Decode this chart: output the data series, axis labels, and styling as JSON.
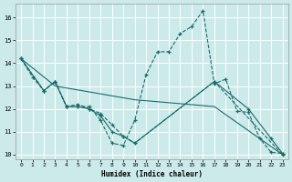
{
  "xlabel": "Humidex (Indice chaleur)",
  "xlim": [
    -0.5,
    23.5
  ],
  "ylim": [
    9.8,
    16.6
  ],
  "yticks": [
    10,
    11,
    12,
    13,
    14,
    15,
    16
  ],
  "xticks": [
    0,
    1,
    2,
    3,
    4,
    5,
    6,
    7,
    8,
    9,
    10,
    11,
    12,
    13,
    14,
    15,
    16,
    17,
    18,
    19,
    20,
    21,
    22,
    23
  ],
  "bg_color": "#cceaea",
  "grid_color": "#ffffff",
  "line_color": "#1a6b6b",
  "lines": [
    {
      "x": [
        0,
        1,
        2,
        3,
        4,
        5,
        6,
        7,
        8,
        9,
        10,
        11,
        12,
        13,
        14,
        15,
        16,
        17,
        18,
        19,
        20,
        21,
        22,
        23
      ],
      "y": [
        14.2,
        13.4,
        12.8,
        13.2,
        12.1,
        12.1,
        12.1,
        11.5,
        10.5,
        10.4,
        11.5,
        13.5,
        14.5,
        14.5,
        15.3,
        15.6,
        16.3,
        13.1,
        13.3,
        11.9,
        11.85,
        10.7,
        10.1,
        10.05
      ],
      "linestyle": "--",
      "marker": true
    },
    {
      "x": [
        0,
        3,
        10,
        17,
        23
      ],
      "y": [
        14.2,
        13.0,
        12.4,
        12.1,
        10.0
      ],
      "linestyle": "-",
      "marker": false
    },
    {
      "x": [
        0,
        2,
        3,
        4,
        5,
        6,
        7,
        8,
        9,
        10,
        17,
        20,
        22,
        23
      ],
      "y": [
        14.2,
        12.8,
        13.2,
        12.1,
        12.1,
        12.0,
        11.7,
        11.0,
        10.8,
        10.5,
        13.2,
        12.0,
        10.7,
        10.05
      ],
      "linestyle": "-",
      "marker": true
    },
    {
      "x": [
        0,
        2,
        3,
        4,
        5,
        6,
        7,
        8,
        9,
        10,
        17,
        23
      ],
      "y": [
        14.2,
        12.8,
        13.2,
        12.1,
        12.2,
        12.0,
        11.8,
        11.3,
        10.8,
        10.5,
        13.2,
        10.0
      ],
      "linestyle": "--",
      "marker": true
    }
  ]
}
